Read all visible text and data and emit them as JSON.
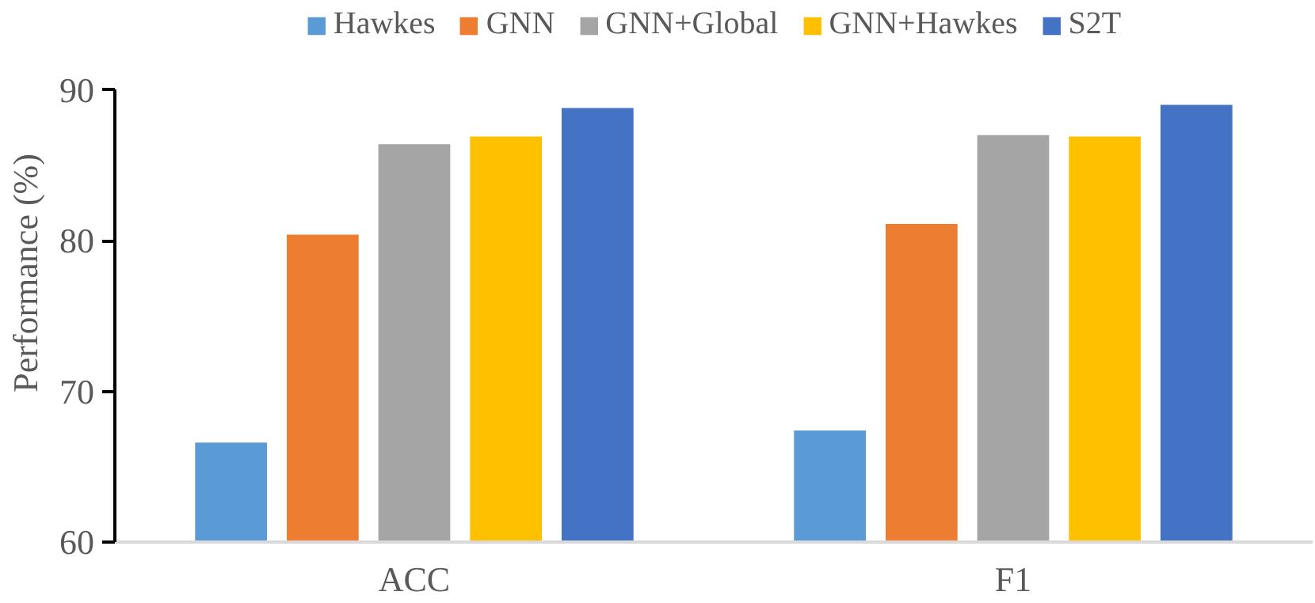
{
  "chart_data": {
    "type": "bar",
    "ylabel": "Performance (%)",
    "categories": [
      "ACC",
      "F1"
    ],
    "series": [
      {
        "name": "Hawkes",
        "color": "#5b9bd5",
        "values": [
          66.6,
          67.4
        ]
      },
      {
        "name": "GNN",
        "color": "#ed7d31",
        "values": [
          80.4,
          81.1
        ]
      },
      {
        "name": "GNN+Global",
        "color": "#a5a5a5",
        "values": [
          86.4,
          87.0
        ]
      },
      {
        "name": "GNN+Hawkes",
        "color": "#ffc000",
        "values": [
          86.9,
          86.9
        ]
      },
      {
        "name": "S2T",
        "color": "#4472c4",
        "values": [
          88.8,
          89.0
        ]
      }
    ],
    "ylim": [
      60,
      90
    ],
    "yticks": [
      60,
      70,
      80,
      90
    ],
    "grid": false,
    "legend": "top"
  }
}
